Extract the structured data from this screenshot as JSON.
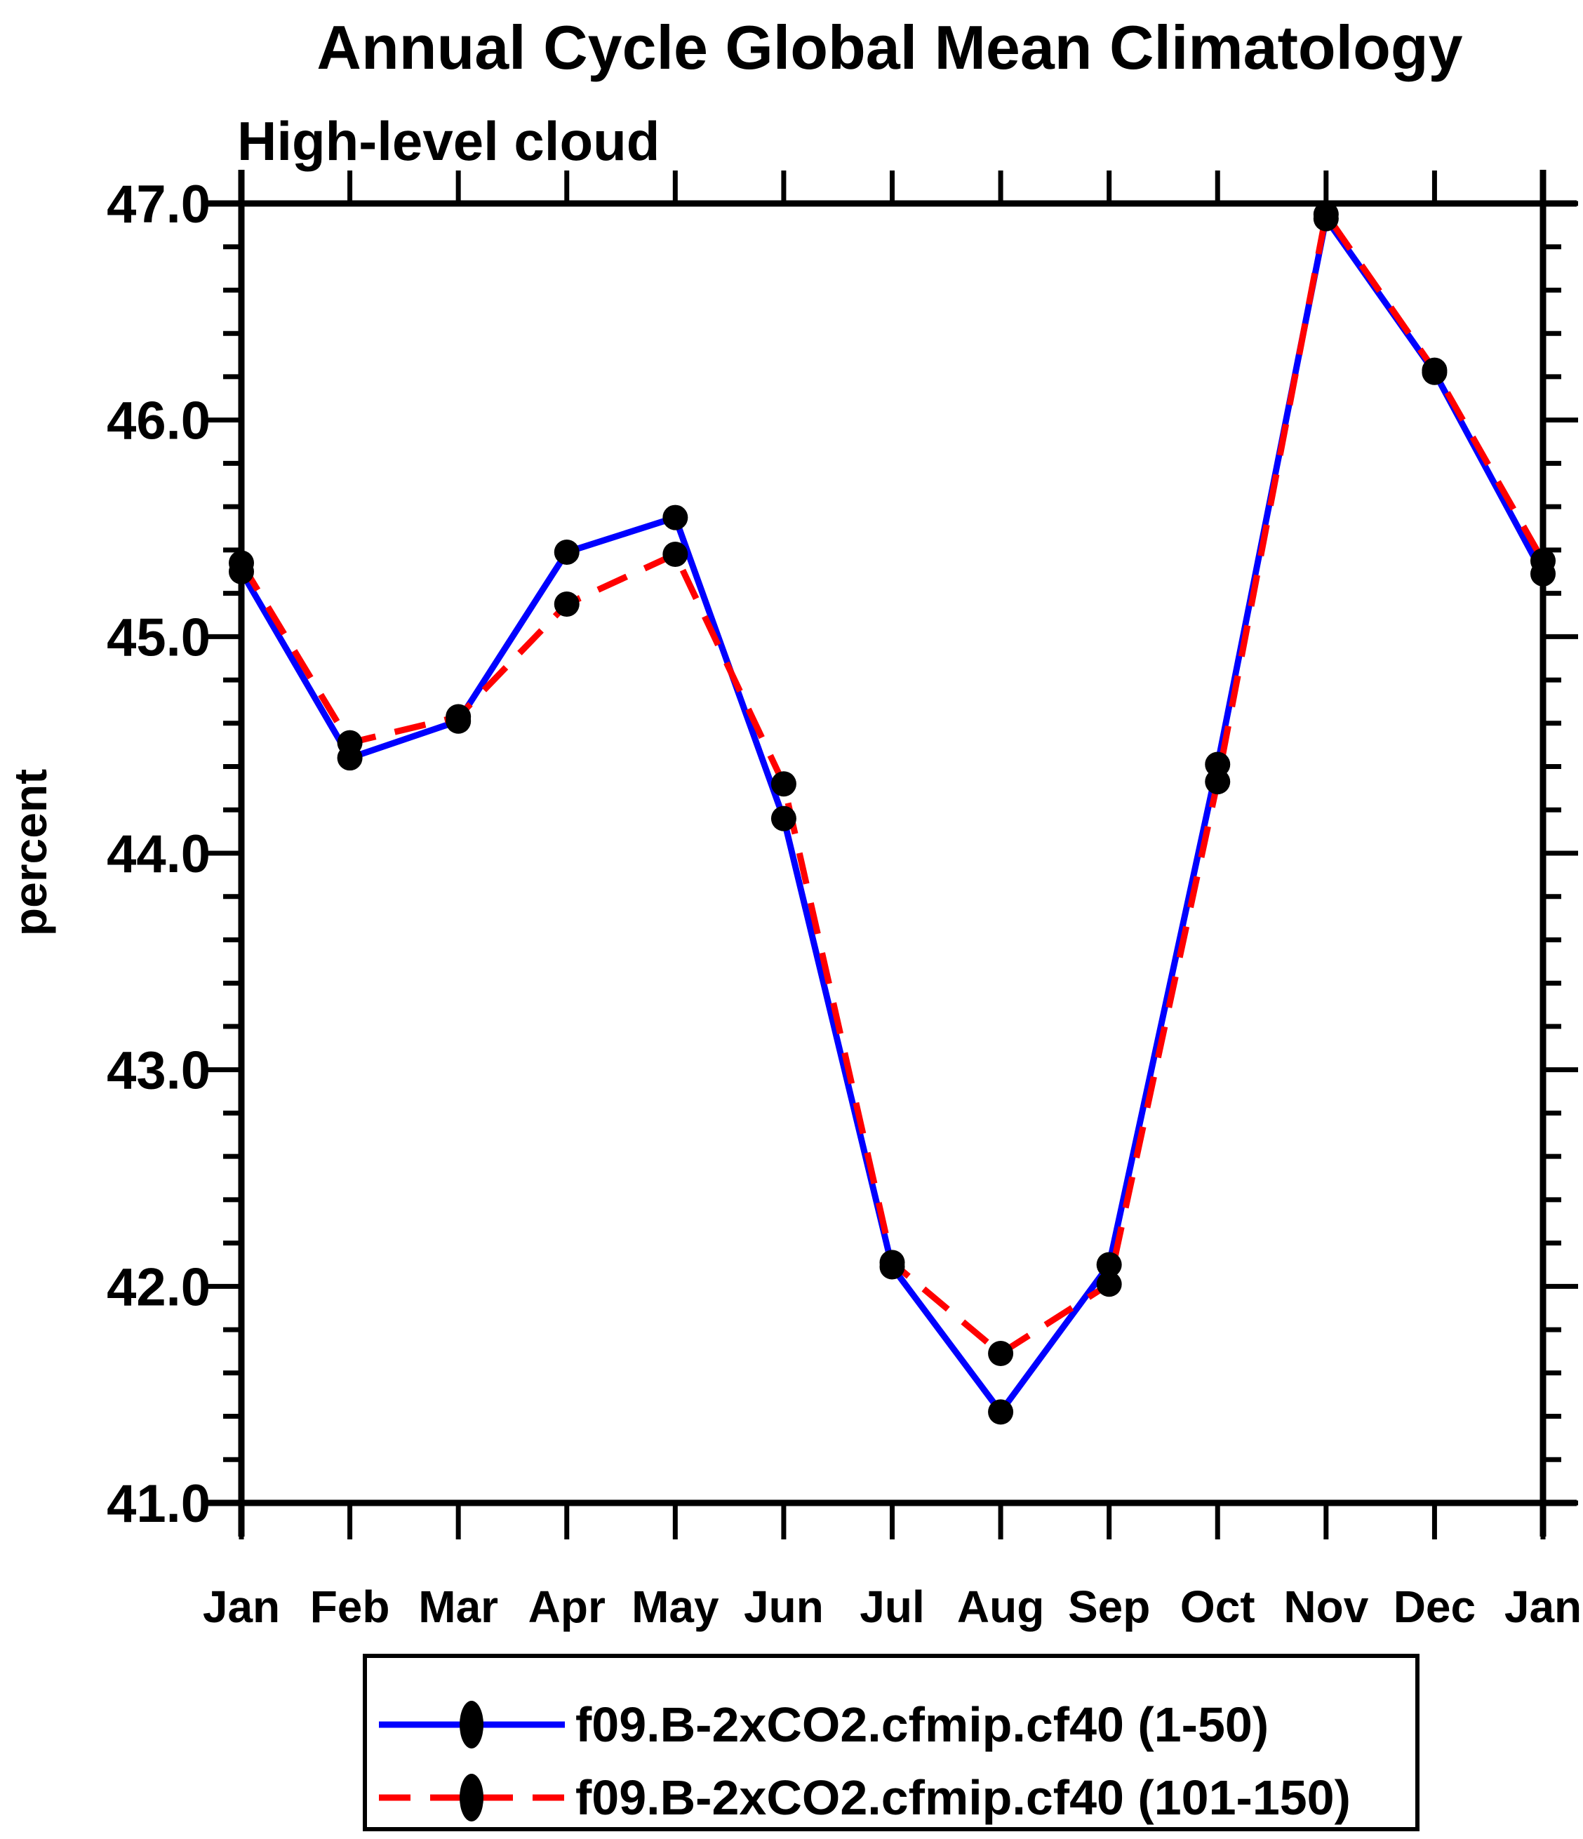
{
  "title": "Annual Cycle Global Mean Climatology",
  "subtitle": "High-level cloud",
  "ylabel": "percent",
  "colors": {
    "series1": "#0000ff",
    "series2": "#ff0000",
    "marker": "#000000",
    "axis": "#000000",
    "background": "#ffffff"
  },
  "legend": {
    "position": "bottom",
    "entries": [
      {
        "label": "f09.B-2xCO2.cfmip.cf40 (1-50)",
        "line": "solid",
        "color": "#0000ff",
        "marker": "filled-circle"
      },
      {
        "label": "f09.B-2xCO2.cfmip.cf40 (101-150)",
        "line": "dashed",
        "color": "#ff0000",
        "marker": "filled-circle"
      }
    ]
  },
  "chart_data": {
    "type": "line",
    "title": "Annual Cycle Global Mean Climatology",
    "subtitle": "High-level cloud",
    "xlabel": "",
    "ylabel": "percent",
    "categories": [
      "Jan",
      "Feb",
      "Mar",
      "Apr",
      "May",
      "Jun",
      "Jul",
      "Aug",
      "Sep",
      "Oct",
      "Nov",
      "Dec",
      "Jan"
    ],
    "series": [
      {
        "name": "f09.B-2xCO2.cfmip.cf40 (1-50)",
        "color": "#0000ff",
        "line": "solid",
        "marker": "circle",
        "values": [
          45.3,
          44.44,
          44.61,
          45.39,
          45.55,
          44.16,
          42.09,
          41.42,
          42.1,
          44.41,
          46.93,
          46.22,
          45.29
        ]
      },
      {
        "name": "f09.B-2xCO2.cfmip.cf40 (101-150)",
        "color": "#ff0000",
        "line": "dashed",
        "marker": "circle",
        "values": [
          45.34,
          44.51,
          44.63,
          45.15,
          45.38,
          44.32,
          42.11,
          41.69,
          42.01,
          44.33,
          46.95,
          46.23,
          45.35
        ]
      }
    ],
    "ylim": [
      41.0,
      47.0
    ],
    "ytick_major_interval": 1.0,
    "ytick_minor_interval": 0.2,
    "ytick_labels": [
      "41.0",
      "42.0",
      "43.0",
      "44.0",
      "45.0",
      "46.0",
      "47.0"
    ],
    "grid": false,
    "legend_position": "bottom"
  }
}
